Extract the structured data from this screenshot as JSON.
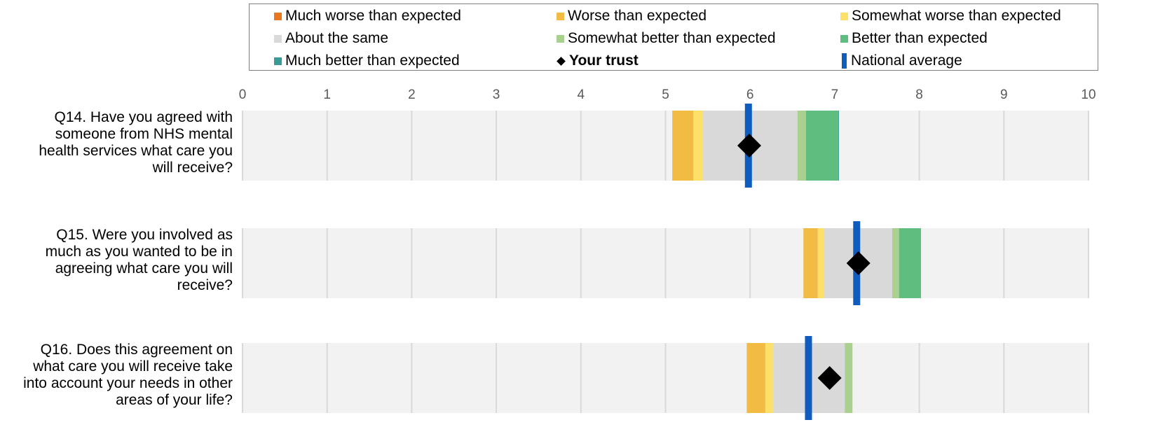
{
  "legend": [
    {
      "label": "Much worse than expected",
      "color": "#e87722",
      "shape": "square"
    },
    {
      "label": "Worse than expected",
      "color": "#f2bb44",
      "shape": "square"
    },
    {
      "label": "Somewhat worse than expected",
      "color": "#fde068",
      "shape": "square"
    },
    {
      "label": "About the same",
      "color": "#d9d9d9",
      "shape": "square"
    },
    {
      "label": "Somewhat better than expected",
      "color": "#a9d08e",
      "shape": "square"
    },
    {
      "label": "Better than expected",
      "color": "#5fbd80",
      "shape": "square"
    },
    {
      "label": "Much better than expected",
      "color": "#3a9a96",
      "shape": "square"
    },
    {
      "label": "Your trust",
      "color": "#000000",
      "shape": "diamond",
      "bold": true
    },
    {
      "label": "National average",
      "color": "#0f5cbf",
      "shape": "bar"
    }
  ],
  "chart_data": {
    "type": "bar",
    "orientation": "horizontal-bands",
    "xlim": [
      0,
      10
    ],
    "xticks": [
      "0",
      "1",
      "2",
      "3",
      "4",
      "5",
      "6",
      "7",
      "8",
      "9",
      "10"
    ],
    "grid": true,
    "legend_position": "top",
    "background_color": "#f2f2f2",
    "categories": [
      "Q14. Have you agreed with someone from NHS mental health services what care you will receive?",
      "Q15. Were you involved as much as you wanted to be in agreeing what care you will receive?",
      "Q16. Does this agreement on what care you will receive take into account your needs in other areas of your life?"
    ],
    "category_lines": [
      [
        "Q14. Have you agreed with",
        "someone from NHS mental",
        "health services what care you",
        "will receive?"
      ],
      [
        "Q15. Were you involved as",
        "much as you wanted to be in",
        "agreeing what care you will",
        "receive?"
      ],
      [
        "Q16. Does this agreement on",
        "what care you will receive take",
        "into account your needs in other",
        "areas of your life?"
      ]
    ],
    "bands": [
      [
        {
          "from": 5.08,
          "to": 5.33,
          "color": "#f2bb44"
        },
        {
          "from": 5.33,
          "to": 5.44,
          "color": "#fde068"
        },
        {
          "from": 5.44,
          "to": 6.56,
          "color": "#d9d9d9"
        },
        {
          "from": 6.56,
          "to": 6.66,
          "color": "#a9d08e"
        },
        {
          "from": 6.66,
          "to": 7.04,
          "color": "#5fbd80"
        },
        {
          "from": 7.04,
          "to": 7.05,
          "color": "#3a9a96"
        }
      ],
      [
        {
          "from": 6.63,
          "to": 6.8,
          "color": "#f2bb44"
        },
        {
          "from": 6.8,
          "to": 6.87,
          "color": "#fde068"
        },
        {
          "from": 6.87,
          "to": 7.68,
          "color": "#d9d9d9"
        },
        {
          "from": 7.68,
          "to": 7.76,
          "color": "#a9d08e"
        },
        {
          "from": 7.76,
          "to": 8.02,
          "color": "#5fbd80"
        }
      ],
      [
        {
          "from": 5.96,
          "to": 6.18,
          "color": "#f2bb44"
        },
        {
          "from": 6.18,
          "to": 6.27,
          "color": "#fde068"
        },
        {
          "from": 6.27,
          "to": 7.12,
          "color": "#d9d9d9"
        },
        {
          "from": 7.12,
          "to": 7.21,
          "color": "#a9d08e"
        }
      ]
    ],
    "your_trust": [
      5.99,
      7.28,
      6.94
    ],
    "national_average": [
      5.98,
      7.26,
      6.69
    ]
  }
}
